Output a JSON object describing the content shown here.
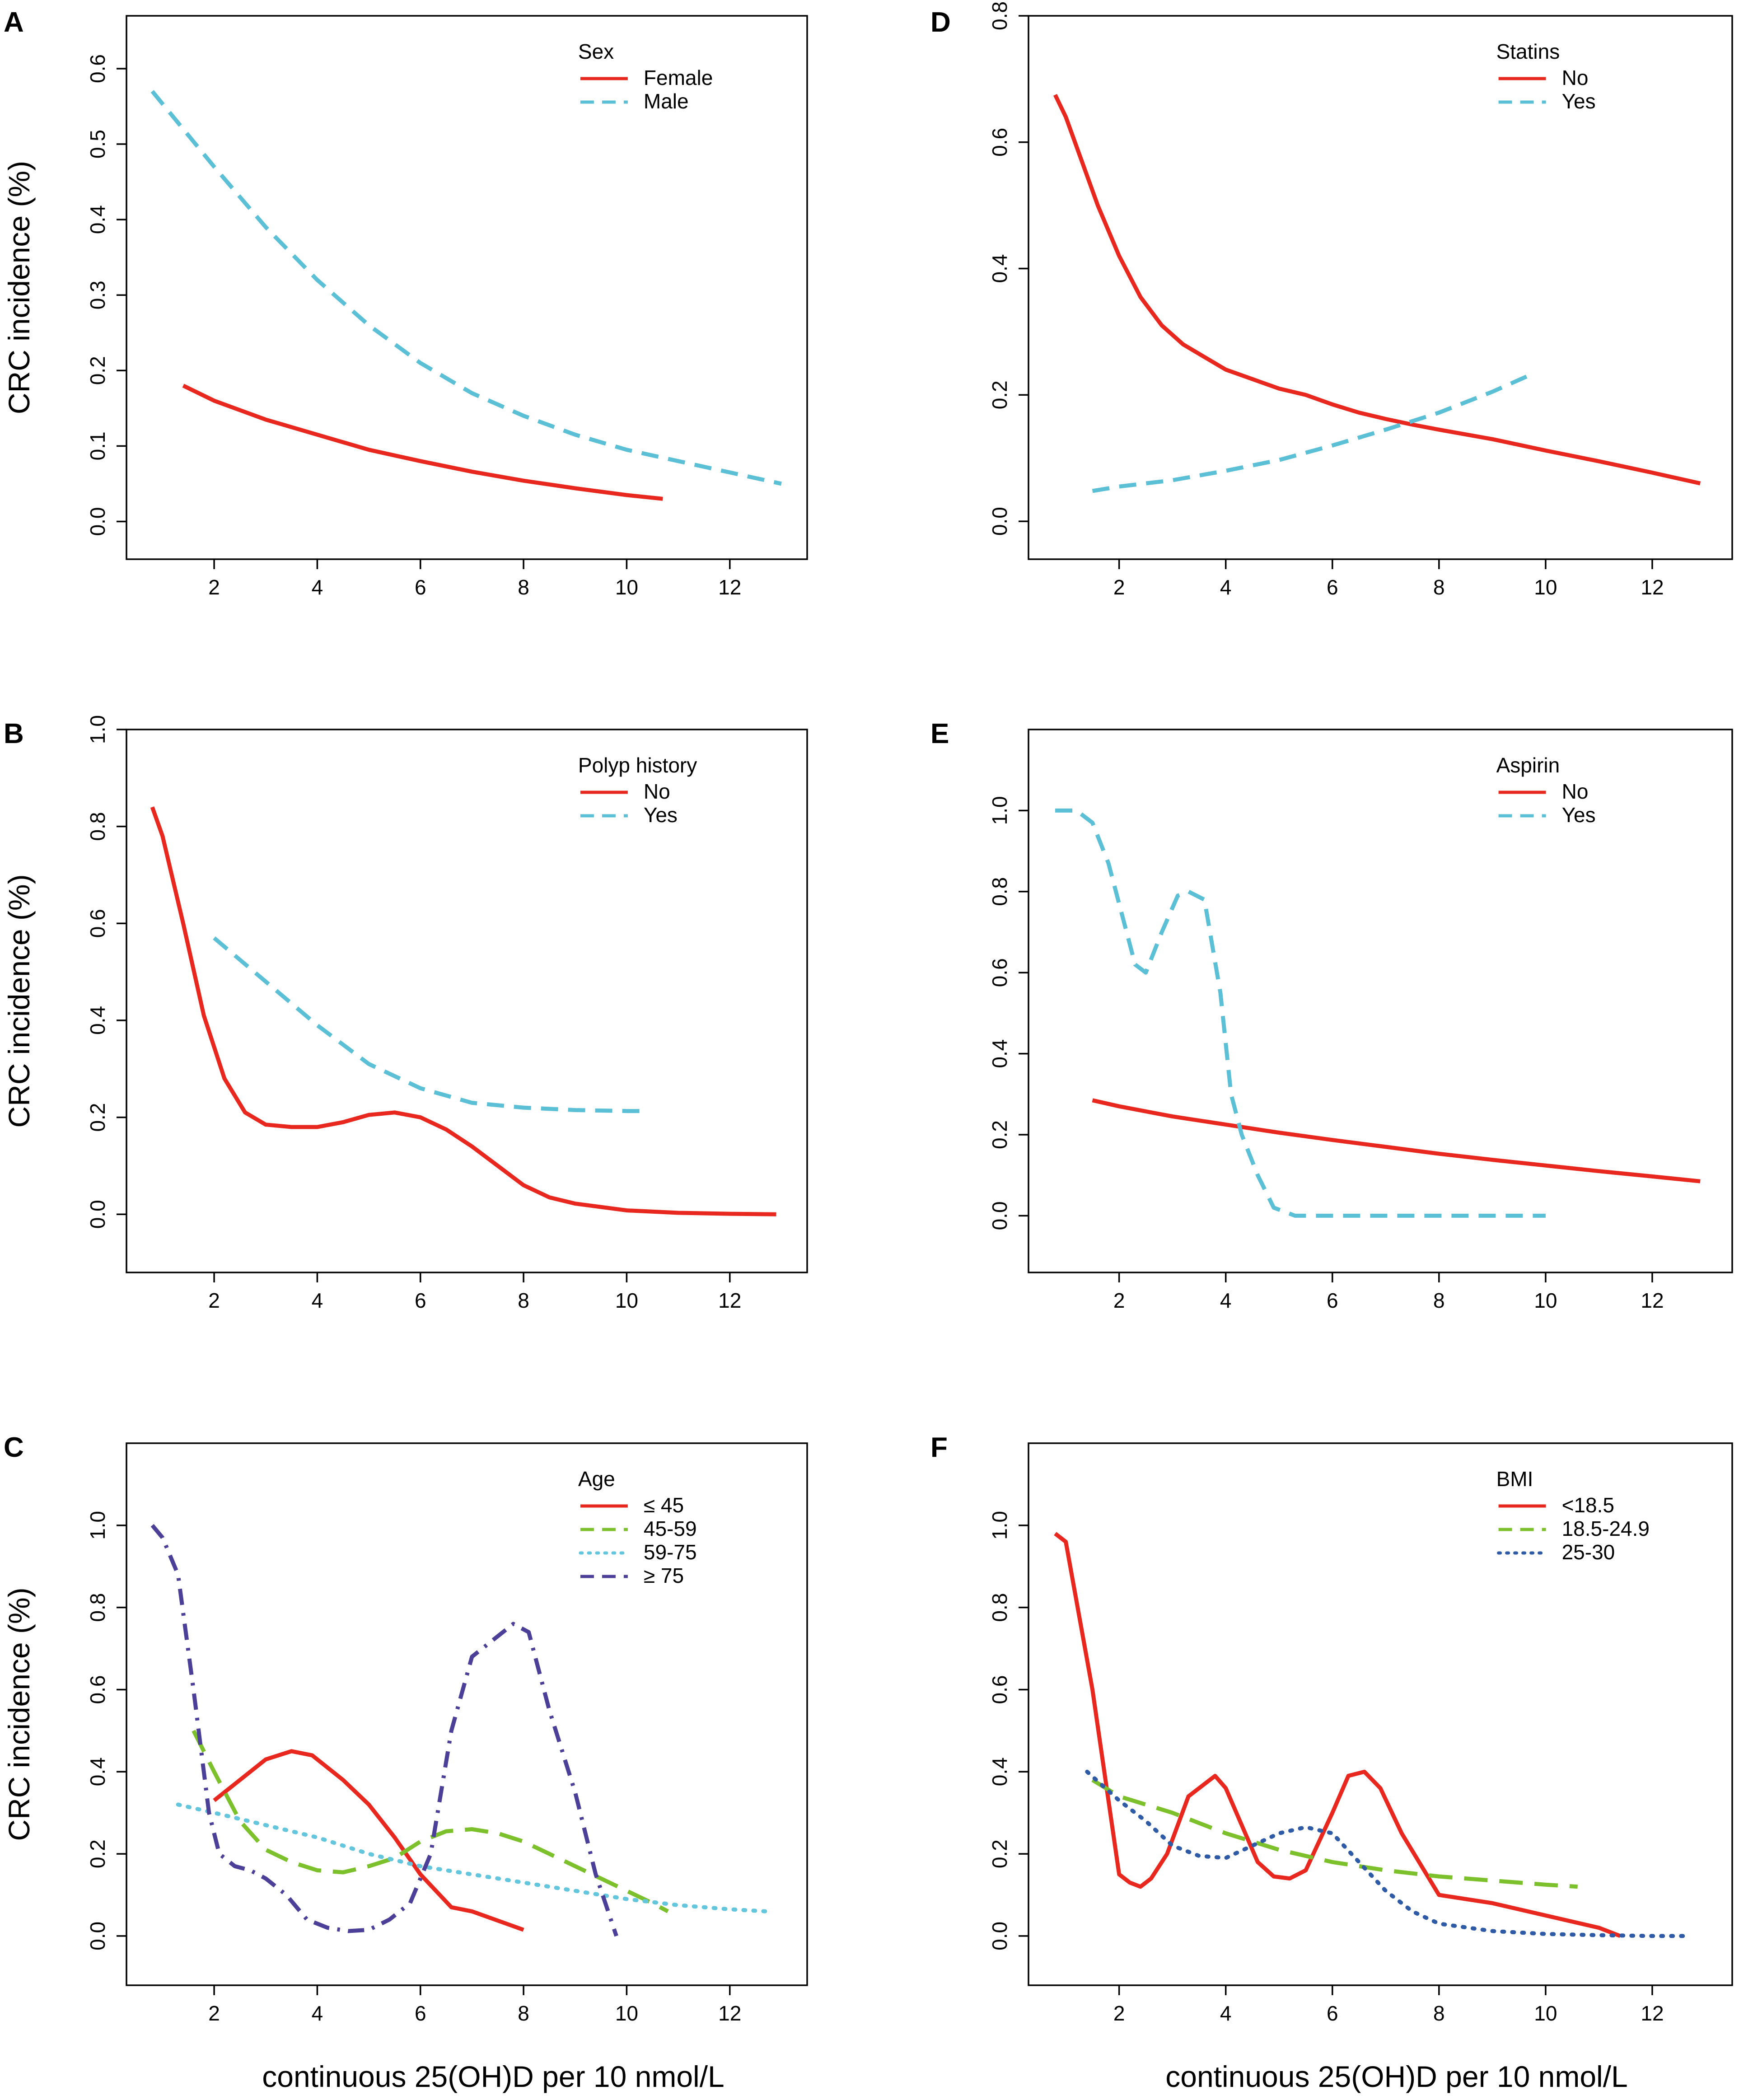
{
  "figure": {
    "xlabel": "continuous 25(OH)D per 10 nmol/L",
    "ylabel": "CRC incidence (%)"
  },
  "colors": {
    "red": "#e8281f",
    "cyan": "#5bc0d6",
    "green": "#7cc12c",
    "lightcyan": "#63c6dd",
    "purple": "#4b3f98",
    "blue": "#2e5aa6"
  },
  "chart_data": [
    {
      "id": "A",
      "letter": "A",
      "type": "line",
      "xlim": [
        0.3,
        13.5
      ],
      "ylim": [
        -0.05,
        0.67
      ],
      "xticks": [
        2,
        4,
        6,
        8,
        10,
        12
      ],
      "yticks": [
        0.0,
        0.1,
        0.2,
        0.3,
        0.4,
        0.5,
        0.6
      ],
      "ytick_labels": [
        "0.0",
        "0.1",
        "0.2",
        "0.3",
        "0.4",
        "0.5",
        "0.6"
      ],
      "legend_title": "Sex",
      "series": [
        {
          "name": "Female",
          "color": "red",
          "dash": "solid",
          "x": [
            1.4,
            2,
            3,
            4,
            5,
            6,
            7,
            8,
            9,
            10,
            10.7
          ],
          "y": [
            0.18,
            0.16,
            0.135,
            0.115,
            0.095,
            0.08,
            0.066,
            0.054,
            0.044,
            0.035,
            0.03
          ]
        },
        {
          "name": "Male",
          "color": "cyan",
          "dash": "dashed",
          "x": [
            0.8,
            2,
            3,
            4,
            5,
            6,
            7,
            8,
            9,
            10,
            11,
            12,
            13
          ],
          "y": [
            0.57,
            0.47,
            0.39,
            0.32,
            0.26,
            0.21,
            0.17,
            0.14,
            0.115,
            0.095,
            0.08,
            0.065,
            0.05
          ]
        }
      ]
    },
    {
      "id": "B",
      "letter": "B",
      "type": "line",
      "xlim": [
        0.3,
        13.5
      ],
      "ylim": [
        -0.12,
        1.0
      ],
      "xticks": [
        2,
        4,
        6,
        8,
        10,
        12
      ],
      "yticks": [
        0.0,
        0.2,
        0.4,
        0.6,
        0.8,
        1.0
      ],
      "ytick_labels": [
        "0.0",
        "0.2",
        "0.4",
        "0.6",
        "0.8",
        "1.0"
      ],
      "legend_title": "Polyp history",
      "series": [
        {
          "name": "No",
          "color": "red",
          "dash": "solid",
          "x": [
            0.8,
            1.0,
            1.4,
            1.8,
            2.2,
            2.6,
            3.0,
            3.5,
            4.0,
            4.5,
            5.0,
            5.5,
            6.0,
            6.5,
            7.0,
            7.5,
            8.0,
            8.5,
            9.0,
            10.0,
            11.0,
            12.0,
            12.9
          ],
          "y": [
            0.84,
            0.78,
            0.6,
            0.41,
            0.28,
            0.21,
            0.185,
            0.18,
            0.18,
            0.19,
            0.205,
            0.21,
            0.2,
            0.175,
            0.14,
            0.1,
            0.06,
            0.035,
            0.022,
            0.008,
            0.003,
            0.001,
            0.0
          ]
        },
        {
          "name": "Yes",
          "color": "cyan",
          "dash": "dashed",
          "x": [
            2.0,
            3.0,
            4.0,
            5.0,
            6.0,
            7.0,
            8.0,
            9.0,
            10.0,
            10.4
          ],
          "y": [
            0.57,
            0.48,
            0.39,
            0.31,
            0.26,
            0.23,
            0.22,
            0.215,
            0.213,
            0.213
          ]
        }
      ]
    },
    {
      "id": "C",
      "letter": "C",
      "type": "line",
      "xlim": [
        0.3,
        13.5
      ],
      "ylim": [
        -0.12,
        1.2
      ],
      "xticks": [
        2,
        4,
        6,
        8,
        10,
        12
      ],
      "yticks": [
        0.0,
        0.2,
        0.4,
        0.6,
        0.8,
        1.0
      ],
      "ytick_labels": [
        "0.0",
        "0.2",
        "0.4",
        "0.6",
        "0.8",
        "1.0"
      ],
      "legend_title": "Age",
      "series": [
        {
          "name": "≤ 45",
          "color": "red",
          "dash": "solid",
          "x": [
            2.0,
            2.5,
            3.0,
            3.5,
            3.9,
            4.5,
            5.0,
            5.5,
            6.0,
            6.6,
            7.0,
            8.0
          ],
          "y": [
            0.33,
            0.38,
            0.43,
            0.45,
            0.44,
            0.38,
            0.32,
            0.24,
            0.15,
            0.07,
            0.06,
            0.015
          ]
        },
        {
          "name": "45-59",
          "color": "green",
          "dash": "longdash",
          "x": [
            1.6,
            2.0,
            2.5,
            3.0,
            3.5,
            4.0,
            4.5,
            5.0,
            5.5,
            6.0,
            6.5,
            7.0,
            7.5,
            8.0,
            8.5,
            9.0,
            9.5,
            10.0,
            10.5,
            10.8
          ],
          "y": [
            0.5,
            0.4,
            0.28,
            0.21,
            0.18,
            0.16,
            0.155,
            0.17,
            0.19,
            0.23,
            0.255,
            0.26,
            0.25,
            0.23,
            0.2,
            0.17,
            0.14,
            0.11,
            0.08,
            0.06
          ]
        },
        {
          "name": "59-75",
          "color": "lightcyan",
          "dash": "dotted",
          "x": [
            1.3,
            2,
            3,
            4,
            5,
            6,
            7,
            8,
            9,
            10,
            11,
            12,
            12.7
          ],
          "y": [
            0.32,
            0.3,
            0.27,
            0.24,
            0.2,
            0.17,
            0.15,
            0.13,
            0.11,
            0.09,
            0.075,
            0.065,
            0.06
          ]
        },
        {
          "name": "≥ 75",
          "color": "purple",
          "dash": "dashdot",
          "x": [
            0.8,
            1.0,
            1.3,
            1.6,
            1.9,
            2.1,
            2.4,
            2.7,
            3.0,
            3.4,
            3.8,
            4.2,
            4.6,
            5.0,
            5.4,
            5.8,
            6.2,
            6.6,
            7.0,
            7.4,
            7.8,
            8.1,
            8.5,
            9.0,
            9.4,
            9.8
          ],
          "y": [
            1.0,
            0.97,
            0.88,
            0.6,
            0.3,
            0.2,
            0.17,
            0.16,
            0.14,
            0.1,
            0.04,
            0.02,
            0.012,
            0.015,
            0.04,
            0.08,
            0.2,
            0.5,
            0.68,
            0.72,
            0.76,
            0.74,
            0.55,
            0.35,
            0.15,
            0.0
          ]
        }
      ]
    },
    {
      "id": "D",
      "letter": "D",
      "type": "line",
      "xlim": [
        0.3,
        13.5
      ],
      "ylim": [
        -0.06,
        0.8
      ],
      "xticks": [
        2,
        4,
        6,
        8,
        10,
        12
      ],
      "yticks": [
        0.0,
        0.2,
        0.4,
        0.6,
        0.8
      ],
      "ytick_labels": [
        "0.0",
        "0.2",
        "0.4",
        "0.6",
        "0.8"
      ],
      "legend_title": "Statins",
      "series": [
        {
          "name": "No",
          "color": "red",
          "dash": "solid",
          "x": [
            0.8,
            1.0,
            1.3,
            1.6,
            2.0,
            2.4,
            2.8,
            3.2,
            3.6,
            4.0,
            4.5,
            5.0,
            5.5,
            6.0,
            6.5,
            7.0,
            7.5,
            8.0,
            9.0,
            10.0,
            11.0,
            12.0,
            12.9
          ],
          "y": [
            0.675,
            0.64,
            0.57,
            0.5,
            0.42,
            0.355,
            0.31,
            0.28,
            0.26,
            0.24,
            0.225,
            0.21,
            0.2,
            0.185,
            0.172,
            0.162,
            0.153,
            0.145,
            0.13,
            0.112,
            0.095,
            0.077,
            0.06
          ]
        },
        {
          "name": "Yes",
          "color": "cyan",
          "dash": "dashed",
          "x": [
            1.5,
            2,
            3,
            4,
            5,
            6,
            7,
            8,
            9,
            9.8
          ],
          "y": [
            0.048,
            0.055,
            0.065,
            0.08,
            0.097,
            0.12,
            0.145,
            0.172,
            0.205,
            0.235
          ]
        }
      ]
    },
    {
      "id": "E",
      "letter": "E",
      "type": "line",
      "xlim": [
        0.3,
        13.5
      ],
      "ylim": [
        -0.14,
        1.2
      ],
      "xticks": [
        2,
        4,
        6,
        8,
        10,
        12
      ],
      "yticks": [
        0.0,
        0.2,
        0.4,
        0.6,
        0.8,
        1.0
      ],
      "ytick_labels": [
        "0.0",
        "0.2",
        "0.4",
        "0.6",
        "0.8",
        "1.0"
      ],
      "legend_title": "Aspirin",
      "series": [
        {
          "name": "No",
          "color": "red",
          "dash": "solid",
          "x": [
            1.5,
            2,
            3,
            4,
            5,
            6,
            7,
            8,
            9,
            10,
            11,
            12,
            12.9
          ],
          "y": [
            0.285,
            0.27,
            0.245,
            0.225,
            0.205,
            0.187,
            0.17,
            0.153,
            0.138,
            0.124,
            0.11,
            0.097,
            0.085
          ]
        },
        {
          "name": "Yes",
          "color": "cyan",
          "dash": "dashed",
          "x": [
            0.8,
            1.2,
            1.5,
            1.8,
            2.1,
            2.3,
            2.5,
            2.8,
            3.1,
            3.3,
            3.6,
            3.9,
            4.1,
            4.3,
            4.6,
            4.9,
            5.3,
            6.0,
            7.0,
            8.0,
            9.0,
            10.0
          ],
          "y": [
            1.0,
            1.0,
            0.97,
            0.87,
            0.72,
            0.62,
            0.6,
            0.7,
            0.79,
            0.8,
            0.78,
            0.55,
            0.3,
            0.2,
            0.1,
            0.02,
            0.0,
            0.0,
            0.0,
            0.0,
            0.0,
            0.0
          ]
        }
      ]
    },
    {
      "id": "F",
      "letter": "F",
      "type": "line",
      "xlim": [
        0.3,
        13.5
      ],
      "ylim": [
        -0.12,
        1.2
      ],
      "xticks": [
        2,
        4,
        6,
        8,
        10,
        12
      ],
      "yticks": [
        0.0,
        0.2,
        0.4,
        0.6,
        0.8,
        1.0
      ],
      "ytick_labels": [
        "0.0",
        "0.2",
        "0.4",
        "0.6",
        "0.8",
        "1.0"
      ],
      "legend_title": "BMI",
      "series": [
        {
          "name": "<18.5",
          "color": "red",
          "dash": "solid",
          "x": [
            0.8,
            1.0,
            1.5,
            2.0,
            2.2,
            2.4,
            2.6,
            2.9,
            3.3,
            3.8,
            4.0,
            4.3,
            4.6,
            4.9,
            5.2,
            5.5,
            6.0,
            6.3,
            6.6,
            6.9,
            7.3,
            8.0,
            9.0,
            10.0,
            11.0,
            11.4
          ],
          "y": [
            0.98,
            0.96,
            0.6,
            0.15,
            0.13,
            0.12,
            0.14,
            0.2,
            0.34,
            0.39,
            0.36,
            0.27,
            0.18,
            0.145,
            0.14,
            0.16,
            0.3,
            0.39,
            0.4,
            0.36,
            0.25,
            0.1,
            0.08,
            0.05,
            0.02,
            0.0
          ]
        },
        {
          "name": "18.5-24.9",
          "color": "green",
          "dash": "longdash",
          "x": [
            1.5,
            2,
            3,
            4,
            5,
            6,
            7,
            8,
            9,
            10,
            10.6
          ],
          "y": [
            0.38,
            0.34,
            0.3,
            0.25,
            0.21,
            0.18,
            0.16,
            0.145,
            0.135,
            0.125,
            0.12
          ]
        },
        {
          "name": "25-30",
          "color": "blue",
          "dash": "dotted",
          "x": [
            1.4,
            2.0,
            2.5,
            3.0,
            3.5,
            4.0,
            4.5,
            5.0,
            5.5,
            6.0,
            6.5,
            7.0,
            7.5,
            8.0,
            9.0,
            10.0,
            11.0,
            12.0,
            12.6
          ],
          "y": [
            0.4,
            0.33,
            0.28,
            0.22,
            0.195,
            0.19,
            0.22,
            0.25,
            0.265,
            0.25,
            0.18,
            0.11,
            0.06,
            0.03,
            0.012,
            0.005,
            0.002,
            0.0,
            0.0
          ]
        }
      ]
    }
  ]
}
